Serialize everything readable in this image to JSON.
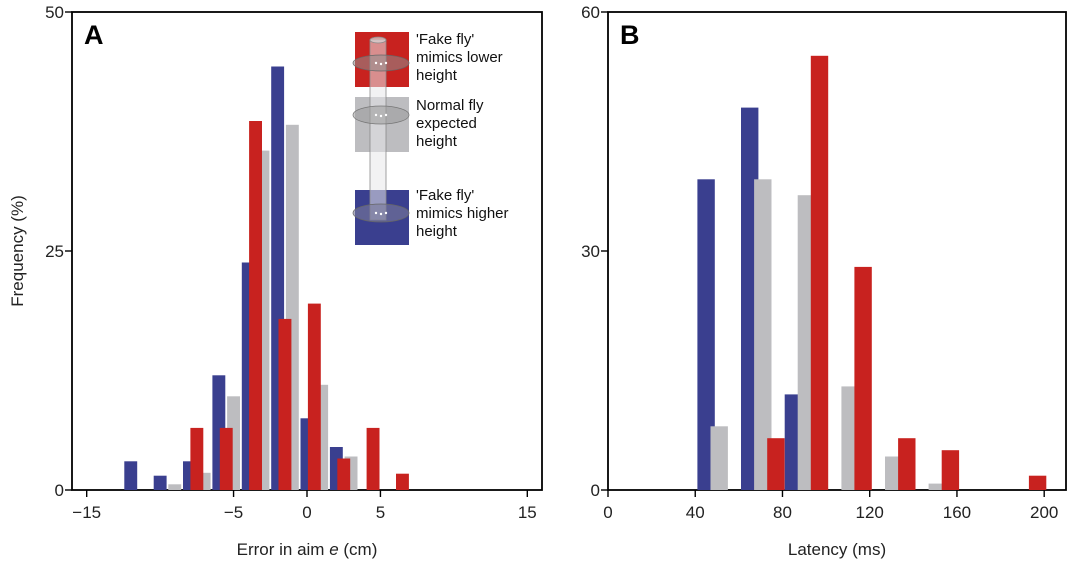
{
  "colors": {
    "lower": "#c8221f",
    "normal": "#bdbdc0",
    "higher": "#3a3f8f"
  },
  "legend": {
    "items": [
      {
        "key": "lower",
        "lines": [
          "'Fake fly'",
          "mimics lower",
          "height"
        ]
      },
      {
        "key": "normal",
        "lines": [
          "Normal fly",
          "expected",
          "height"
        ]
      },
      {
        "key": "higher",
        "lines": [
          "'Fake fly'",
          "mimics higher",
          "height"
        ]
      }
    ]
  },
  "chart_data": [
    {
      "type": "bar",
      "panel": "A",
      "xlabel_prefix": "Error in aim ",
      "xlabel_var": "e",
      "xlabel_suffix": " (cm)",
      "ylabel": "Frequency (%)",
      "xlim": [
        -16,
        16
      ],
      "ylim": [
        0,
        50
      ],
      "xticks": [
        -15,
        -5,
        0,
        5,
        15
      ],
      "xtick_labels": [
        "−15",
        "−5",
        "0",
        "5",
        "15"
      ],
      "yticks": [
        0,
        25,
        50
      ],
      "bin_centers": [
        -11,
        -9,
        -7,
        -5,
        -3,
        -1,
        1,
        3,
        5,
        7,
        11
      ],
      "series": [
        {
          "key": "higher",
          "values": [
            3,
            1.5,
            3,
            12,
            23.8,
            44.3,
            7.5,
            4.5,
            0,
            0,
            0
          ]
        },
        {
          "key": "normal",
          "values": [
            0,
            0.6,
            1.8,
            9.8,
            35.5,
            38.2,
            11,
            3.5,
            0,
            0,
            0
          ]
        },
        {
          "key": "lower",
          "values": [
            0,
            0,
            6.5,
            6.5,
            38.6,
            17.9,
            19.5,
            3.3,
            6.5,
            1.7,
            0
          ]
        }
      ],
      "series_offsets": {
        "higher": -1,
        "normal": 0,
        "lower": -0.5
      }
    },
    {
      "type": "bar",
      "panel": "B",
      "xlabel": "Latency (ms)",
      "xlim": [
        0,
        210
      ],
      "ylim": [
        0,
        60
      ],
      "xticks": [
        0,
        40,
        80,
        120,
        160,
        200
      ],
      "xtick_labels": [
        "0",
        "40",
        "80",
        "120",
        "160",
        "200"
      ],
      "yticks": [
        0,
        30,
        60
      ],
      "bin_width": 20,
      "series": [
        {
          "key": "higher",
          "x": [
            45,
            65,
            85
          ],
          "values": [
            39,
            48,
            12
          ]
        },
        {
          "key": "normal",
          "x": [
            51,
            71,
            91,
            111,
            131,
            151
          ],
          "values": [
            8,
            39,
            37,
            13,
            4.2,
            0.8
          ]
        },
        {
          "key": "lower",
          "x": [
            77,
            97,
            117,
            137,
            157,
            197
          ],
          "values": [
            6.5,
            54.5,
            28,
            6.5,
            5,
            1.8
          ]
        }
      ]
    }
  ]
}
